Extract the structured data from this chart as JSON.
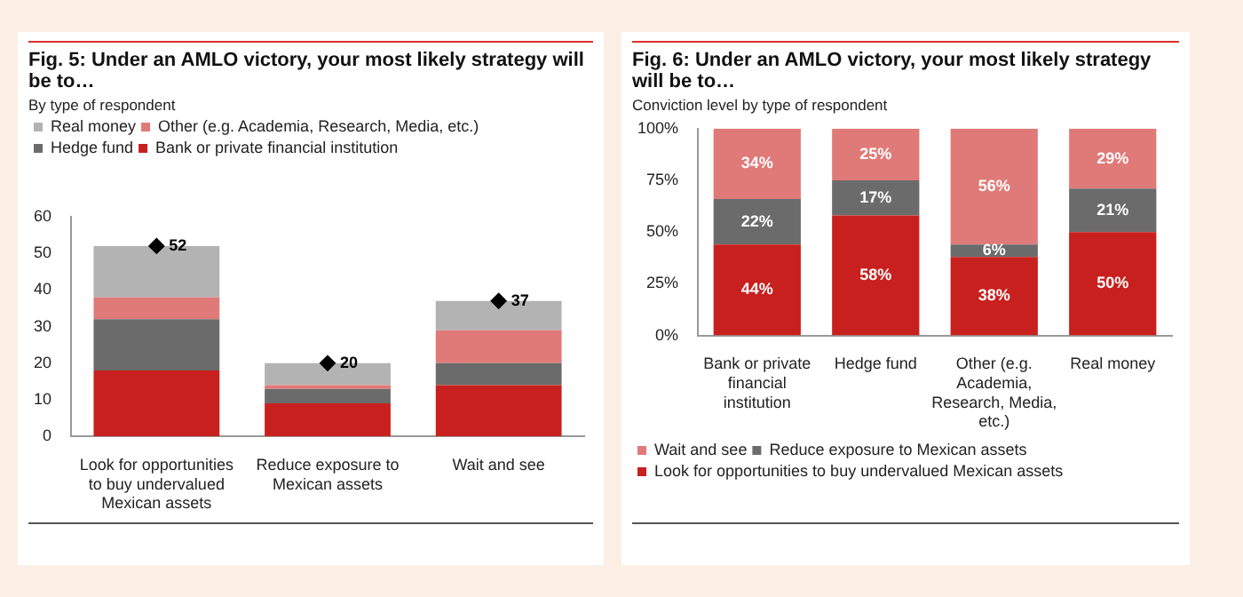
{
  "chart_data": [
    {
      "type": "bar",
      "title": "Fig. 5: Under an AMLO victory, your most likely strategy will be to…",
      "subtitle": "By type of respondent",
      "categories": [
        "Look for opportunities to buy undervalued Mexican assets",
        "Reduce exposure to Mexican assets",
        "Wait and see"
      ],
      "stacked": true,
      "ylim": [
        0,
        60
      ],
      "yticks": [
        0,
        10,
        20,
        30,
        40,
        50,
        60
      ],
      "grid": false,
      "legend": "top left",
      "series": [
        {
          "name": "Bank or private financial institution",
          "color": "#c8201e",
          "values": [
            18,
            9,
            14
          ]
        },
        {
          "name": "Hedge fund",
          "color": "#6b6b6b",
          "values": [
            14,
            4,
            6
          ]
        },
        {
          "name": "Other (e.g. Academia, Research, Media, etc.)",
          "color": "#e07a78",
          "values": [
            6,
            1,
            9
          ]
        },
        {
          "name": "Real money",
          "color": "#b3b3b3",
          "values": [
            14,
            6,
            8
          ]
        },
        {
          "type": "scatter",
          "marker": "diamond",
          "color": "#000000",
          "x": [
            "Look for opportunities to buy undervalued Mexican assets",
            "Reduce exposure to Mexican assets",
            "Wait and see"
          ],
          "values": [
            52,
            20,
            37
          ],
          "value_labels": [
            "52",
            "20",
            "37"
          ]
        }
      ]
    },
    {
      "type": "bar",
      "title": "Fig. 6: Under an AMLO victory, your most likely strategy will be to…",
      "subtitle": "Conviction level by type of respondent",
      "categories": [
        "Bank or private financial institution",
        "Hedge fund",
        "Other (e.g. Academia, Research, Media, etc.)",
        "Real money"
      ],
      "stacked": true,
      "ylim": [
        0,
        100
      ],
      "yticks": [
        {
          "value": 0,
          "label": "0%"
        },
        {
          "value": 25,
          "label": "25%"
        },
        {
          "value": 50,
          "label": "50%"
        },
        {
          "value": 75,
          "label": "75%"
        },
        {
          "value": 100,
          "label": "100%"
        }
      ],
      "grid": false,
      "legend": "bottom left",
      "series": [
        {
          "name": "Look for opportunities to buy undervalued Mexican assets",
          "color": "#c8201e",
          "values": [
            44,
            58,
            38,
            50
          ],
          "value_labels": [
            "44%",
            "58%",
            "38%",
            "50%"
          ]
        },
        {
          "name": "Reduce exposure to Mexican assets",
          "color": "#6b6b6b",
          "values": [
            22,
            17,
            6,
            21
          ],
          "value_labels": [
            "22%",
            "17%",
            "6%",
            "21%"
          ]
        },
        {
          "name": "Wait and see",
          "color": "#e07a78",
          "values": [
            34,
            25,
            56,
            29
          ],
          "value_labels": [
            "34%",
            "25%",
            "56%",
            "29%"
          ]
        }
      ]
    }
  ]
}
